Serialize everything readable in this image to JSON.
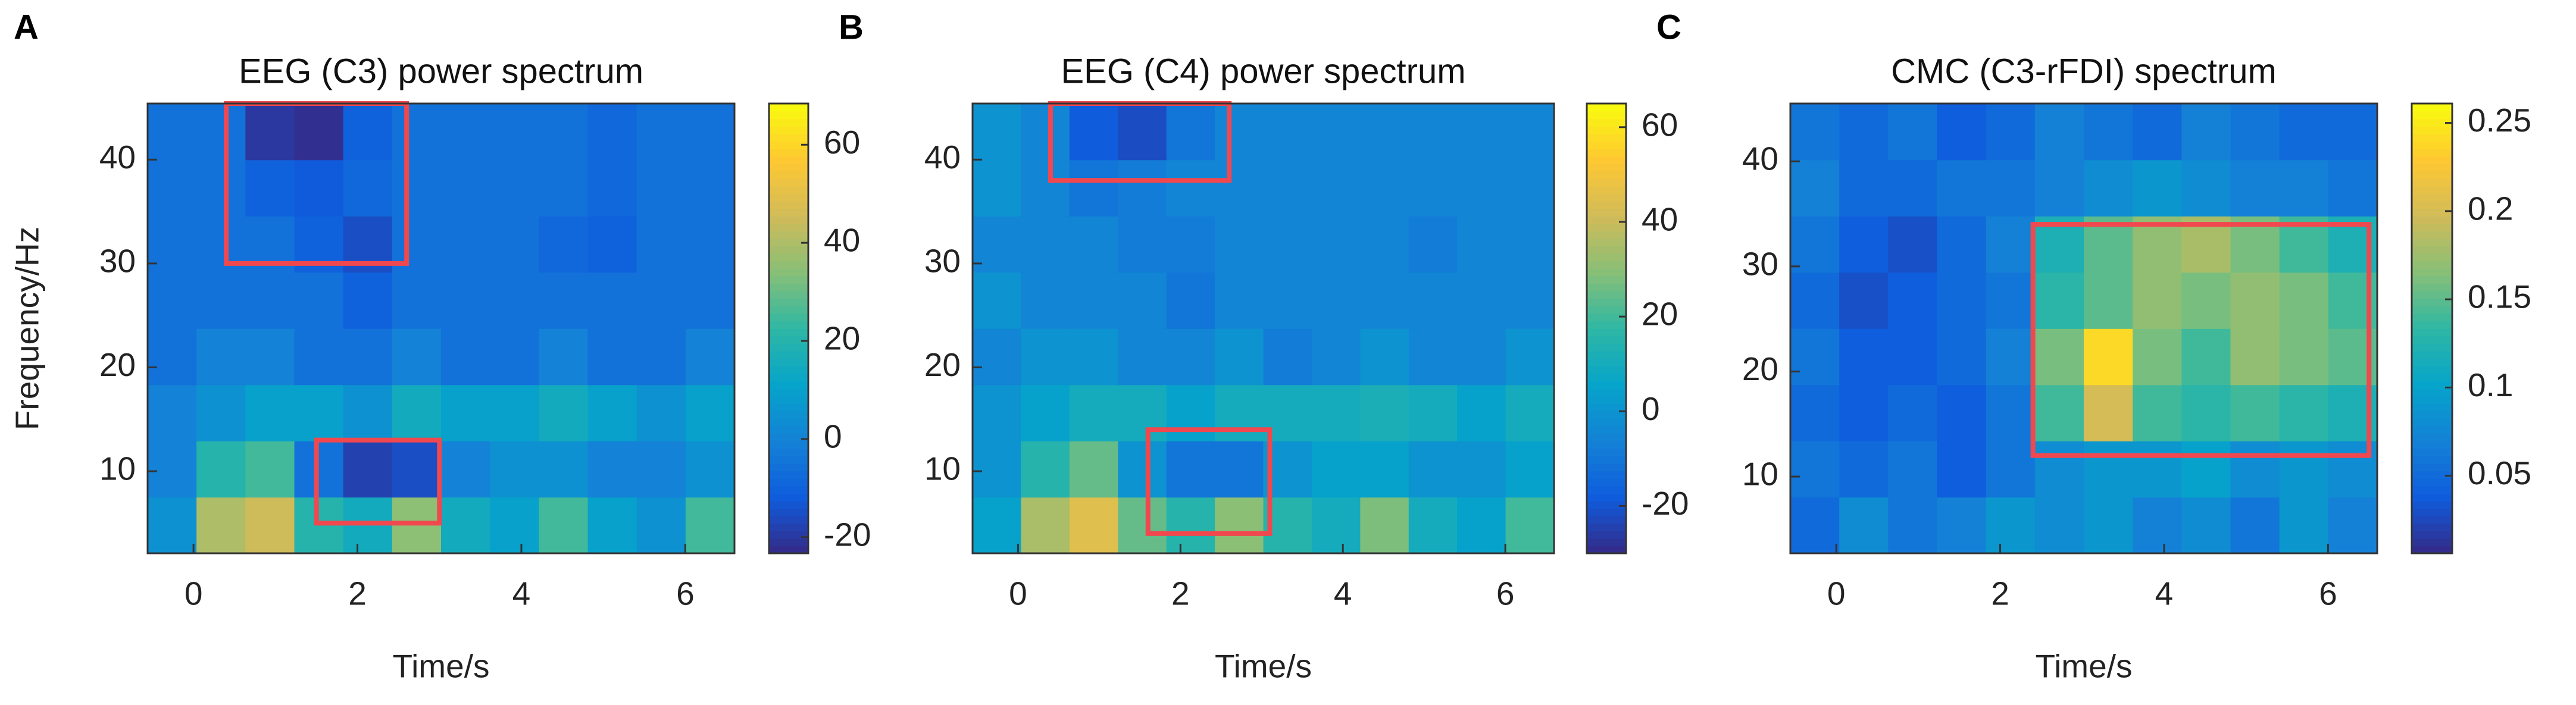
{
  "chart_data": [
    {
      "type": "heatmap",
      "label": "A",
      "title": "EEG (C3) power spectrum",
      "xlabel": "Time/s",
      "ylabel": "Frequency/Hz",
      "xlim": [
        -0.56,
        6.6
      ],
      "ylim": [
        2.1,
        45.4
      ],
      "xticks": [
        0,
        2,
        4,
        6
      ],
      "yticks": [
        10,
        20,
        30,
        40
      ],
      "clim": [
        -23.3,
        68.4
      ],
      "cticks": [
        -20,
        0,
        20,
        40,
        60
      ],
      "colormap": [
        "#352a87",
        "#0f5cdd",
        "#1481d6",
        "#06a4ca",
        "#2eb7a4",
        "#87bf77",
        "#d1bb59",
        "#fec832",
        "#f9fb0e"
      ],
      "box_color": "#f0484e",
      "boxes": [
        {
          "x": [
            0.4,
            2.6
          ],
          "y": [
            30,
            45.4
          ]
        },
        {
          "x": [
            1.5,
            3.0
          ],
          "y": [
            5,
            13
          ]
        }
      ],
      "z": [
        [
          5,
          40,
          45,
          20,
          15,
          35,
          15,
          10,
          25,
          10,
          5,
          25
        ],
        [
          0,
          20,
          25,
          -5,
          -18,
          -15,
          0,
          5,
          5,
          0,
          0,
          5
        ],
        [
          0,
          5,
          10,
          10,
          5,
          15,
          10,
          10,
          15,
          10,
          5,
          10
        ],
        [
          -5,
          0,
          0,
          -5,
          -5,
          0,
          -5,
          -5,
          0,
          -5,
          -5,
          0
        ],
        [
          -5,
          -5,
          -5,
          -5,
          -10,
          -5,
          -5,
          -5,
          -5,
          -5,
          -5,
          -5
        ],
        [
          -5,
          -5,
          -5,
          -10,
          -15,
          -5,
          -5,
          -5,
          -8,
          -10,
          -5,
          -5
        ],
        [
          -5,
          -5,
          -10,
          -12,
          -8,
          -5,
          -5,
          -5,
          -5,
          -8,
          -5,
          -5
        ],
        [
          -5,
          -5,
          -20,
          -22,
          -10,
          -5,
          -5,
          -5,
          -5,
          -8,
          -5,
          -5
        ]
      ]
    },
    {
      "type": "heatmap",
      "label": "B",
      "title": "EEG (C4) power spectrum",
      "xlabel": "Time/s",
      "xlim": [
        -0.56,
        6.6
      ],
      "ylim": [
        2.1,
        45.4
      ],
      "xticks": [
        0,
        2,
        4,
        6
      ],
      "yticks": [
        10,
        20,
        30,
        40
      ],
      "clim": [
        -30,
        65
      ],
      "cticks": [
        -20,
        0,
        20,
        40,
        60
      ],
      "colormap": [
        "#352a87",
        "#0f5cdd",
        "#1481d6",
        "#06a4ca",
        "#2eb7a4",
        "#87bf77",
        "#d1bb59",
        "#fec832",
        "#f9fb0e"
      ],
      "box_color": "#f0484e",
      "boxes": [
        {
          "x": [
            0.4,
            2.6
          ],
          "y": [
            38,
            45.4
          ]
        },
        {
          "x": [
            1.6,
            3.1
          ],
          "y": [
            4,
            14
          ]
        }
      ],
      "z": [
        [
          5,
          35,
          45,
          25,
          15,
          30,
          15,
          10,
          28,
          10,
          5,
          20
        ],
        [
          0,
          15,
          25,
          0,
          -10,
          -10,
          0,
          5,
          5,
          0,
          0,
          5
        ],
        [
          0,
          5,
          10,
          10,
          5,
          10,
          10,
          10,
          12,
          10,
          5,
          10
        ],
        [
          -5,
          0,
          0,
          -5,
          -5,
          0,
          -8,
          -5,
          0,
          -5,
          -5,
          0
        ],
        [
          0,
          -5,
          -5,
          -5,
          -10,
          -5,
          -5,
          -5,
          -5,
          -5,
          -5,
          -5
        ],
        [
          -5,
          -5,
          -5,
          -8,
          -8,
          -5,
          -5,
          -5,
          -5,
          -8,
          -5,
          -5
        ],
        [
          0,
          -5,
          -10,
          -8,
          -5,
          -5,
          -5,
          -5,
          -5,
          -5,
          -5,
          -5
        ],
        [
          0,
          -5,
          -18,
          -22,
          -10,
          -5,
          -5,
          -5,
          -5,
          -5,
          -5,
          -5
        ]
      ]
    },
    {
      "type": "heatmap",
      "label": "C",
      "title": "CMC (C3-rFDI) spectrum",
      "xlabel": "Time/s",
      "xlim": [
        -0.56,
        6.6
      ],
      "ylim": [
        2.7,
        45.5
      ],
      "xticks": [
        0,
        2,
        4,
        6
      ],
      "yticks": [
        10,
        20,
        30,
        40
      ],
      "clim": [
        0.006,
        0.261
      ],
      "cticks": [
        0.05,
        0.1,
        0.15,
        0.2,
        0.25
      ],
      "colormap": [
        "#352a87",
        "#0f5cdd",
        "#1481d6",
        "#06a4ca",
        "#2eb7a4",
        "#87bf77",
        "#d1bb59",
        "#fec832",
        "#f9fb0e"
      ],
      "box_color": "#f0484e",
      "boxes": [
        {
          "x": [
            2.4,
            6.5
          ],
          "y": [
            12,
            34
          ]
        }
      ],
      "z": [
        [
          0.05,
          0.08,
          0.06,
          0.07,
          0.09,
          0.08,
          0.09,
          0.07,
          0.08,
          0.06,
          0.09,
          0.07
        ],
        [
          0.06,
          0.05,
          0.06,
          0.04,
          0.06,
          0.08,
          0.09,
          0.09,
          0.1,
          0.08,
          0.09,
          0.08
        ],
        [
          0.05,
          0.04,
          0.05,
          0.04,
          0.06,
          0.14,
          0.2,
          0.14,
          0.13,
          0.14,
          0.13,
          0.12
        ],
        [
          0.06,
          0.04,
          0.04,
          0.05,
          0.07,
          0.16,
          0.24,
          0.16,
          0.14,
          0.17,
          0.16,
          0.15
        ],
        [
          0.05,
          0.03,
          0.04,
          0.05,
          0.06,
          0.13,
          0.15,
          0.17,
          0.16,
          0.17,
          0.16,
          0.14
        ],
        [
          0.06,
          0.04,
          0.03,
          0.05,
          0.07,
          0.12,
          0.15,
          0.17,
          0.18,
          0.16,
          0.14,
          0.12
        ],
        [
          0.07,
          0.05,
          0.05,
          0.06,
          0.06,
          0.07,
          0.08,
          0.09,
          0.08,
          0.07,
          0.07,
          0.06
        ],
        [
          0.06,
          0.05,
          0.06,
          0.04,
          0.05,
          0.07,
          0.06,
          0.05,
          0.07,
          0.06,
          0.05,
          0.05
        ]
      ]
    }
  ]
}
